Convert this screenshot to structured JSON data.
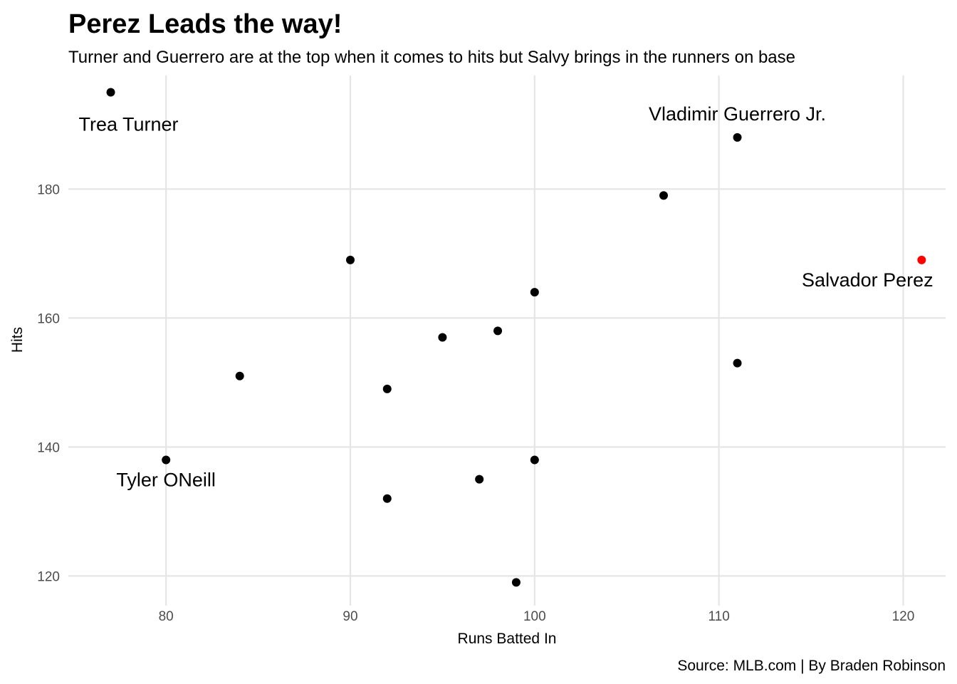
{
  "chart_data": {
    "type": "scatter",
    "title": "Perez Leads the way!",
    "subtitle": "Turner and Guerrero are at the top when it comes to hits but Salvy brings in the runners on base",
    "xlabel": "Runs Batted In",
    "ylabel": "Hits",
    "caption": "Source: MLB.com | By Braden Robinson",
    "xlim": [
      74.7,
      122.3
    ],
    "ylim": [
      115.4,
      197.6
    ],
    "xticks": [
      80,
      90,
      100,
      110,
      120
    ],
    "yticks": [
      120,
      140,
      160,
      180
    ],
    "grid": true,
    "colors": {
      "default_point": "#000000",
      "highlight_point": "#ff0000",
      "grid": "#e5e5e5"
    },
    "points": [
      {
        "x": 77,
        "y": 195,
        "label": "Trea Turner"
      },
      {
        "x": 111,
        "y": 188,
        "label": "Vladimir Guerrero Jr."
      },
      {
        "x": 107,
        "y": 179
      },
      {
        "x": 121,
        "y": 169,
        "label": "Salvador Perez",
        "highlight": true
      },
      {
        "x": 90,
        "y": 169
      },
      {
        "x": 100,
        "y": 164
      },
      {
        "x": 98,
        "y": 158
      },
      {
        "x": 95,
        "y": 157
      },
      {
        "x": 111,
        "y": 153
      },
      {
        "x": 84,
        "y": 151
      },
      {
        "x": 92,
        "y": 149
      },
      {
        "x": 80,
        "y": 138,
        "label": "Tyler ONeill"
      },
      {
        "x": 100,
        "y": 138
      },
      {
        "x": 97,
        "y": 135
      },
      {
        "x": 92,
        "y": 132
      },
      {
        "x": 99,
        "y": 119
      }
    ]
  }
}
